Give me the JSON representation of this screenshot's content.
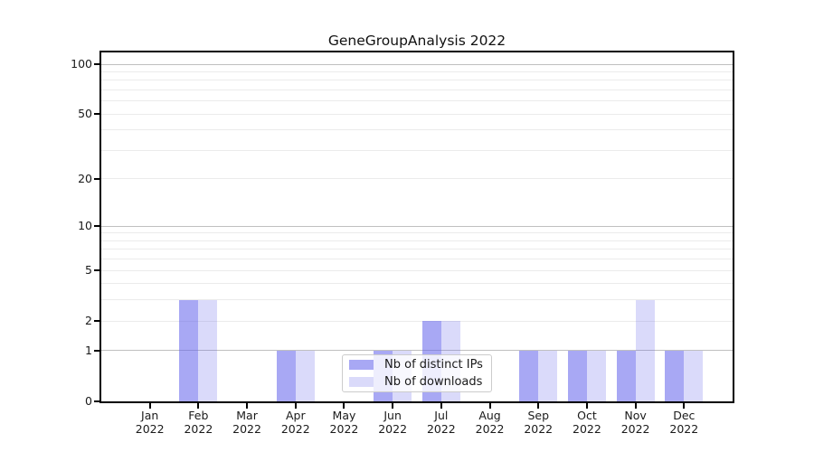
{
  "title": "GeneGroupAnalysis 2022",
  "chart_data": {
    "type": "bar",
    "title": "GeneGroupAnalysis 2022",
    "yscale": "log1p",
    "ylim": [
      0,
      119
    ],
    "yticks": [
      0,
      1,
      2,
      5,
      10,
      20,
      50,
      100
    ],
    "grid_major": [
      1,
      10,
      100
    ],
    "grid_minor": [
      2,
      3,
      4,
      5,
      6,
      7,
      8,
      9,
      20,
      30,
      40,
      50,
      60,
      70,
      80,
      90
    ],
    "categories": [
      "Jan",
      "Feb",
      "Mar",
      "Apr",
      "May",
      "Jun",
      "Jul",
      "Aug",
      "Sep",
      "Oct",
      "Nov",
      "Dec"
    ],
    "year": "2022",
    "series": [
      {
        "name": "Nb of distinct IPs",
        "color": "rgba(100,100,235,0.56)",
        "values": [
          0,
          3,
          0,
          1,
          0,
          1,
          2,
          0,
          1,
          1,
          1,
          1
        ]
      },
      {
        "name": "Nb of downloads",
        "color": "rgba(100,100,235,0.24)",
        "values": [
          0,
          3,
          0,
          1,
          0,
          1,
          2,
          0,
          1,
          1,
          3,
          1
        ]
      }
    ],
    "legend_position": "lower center",
    "grid": "on"
  },
  "colors": {
    "background": "#ffffff",
    "spine": "#000000",
    "text": "#1a1a1a",
    "grid_major": "#c0c0c0",
    "grid_minor": "#ebebeb",
    "legend_border": "#cccccc"
  }
}
